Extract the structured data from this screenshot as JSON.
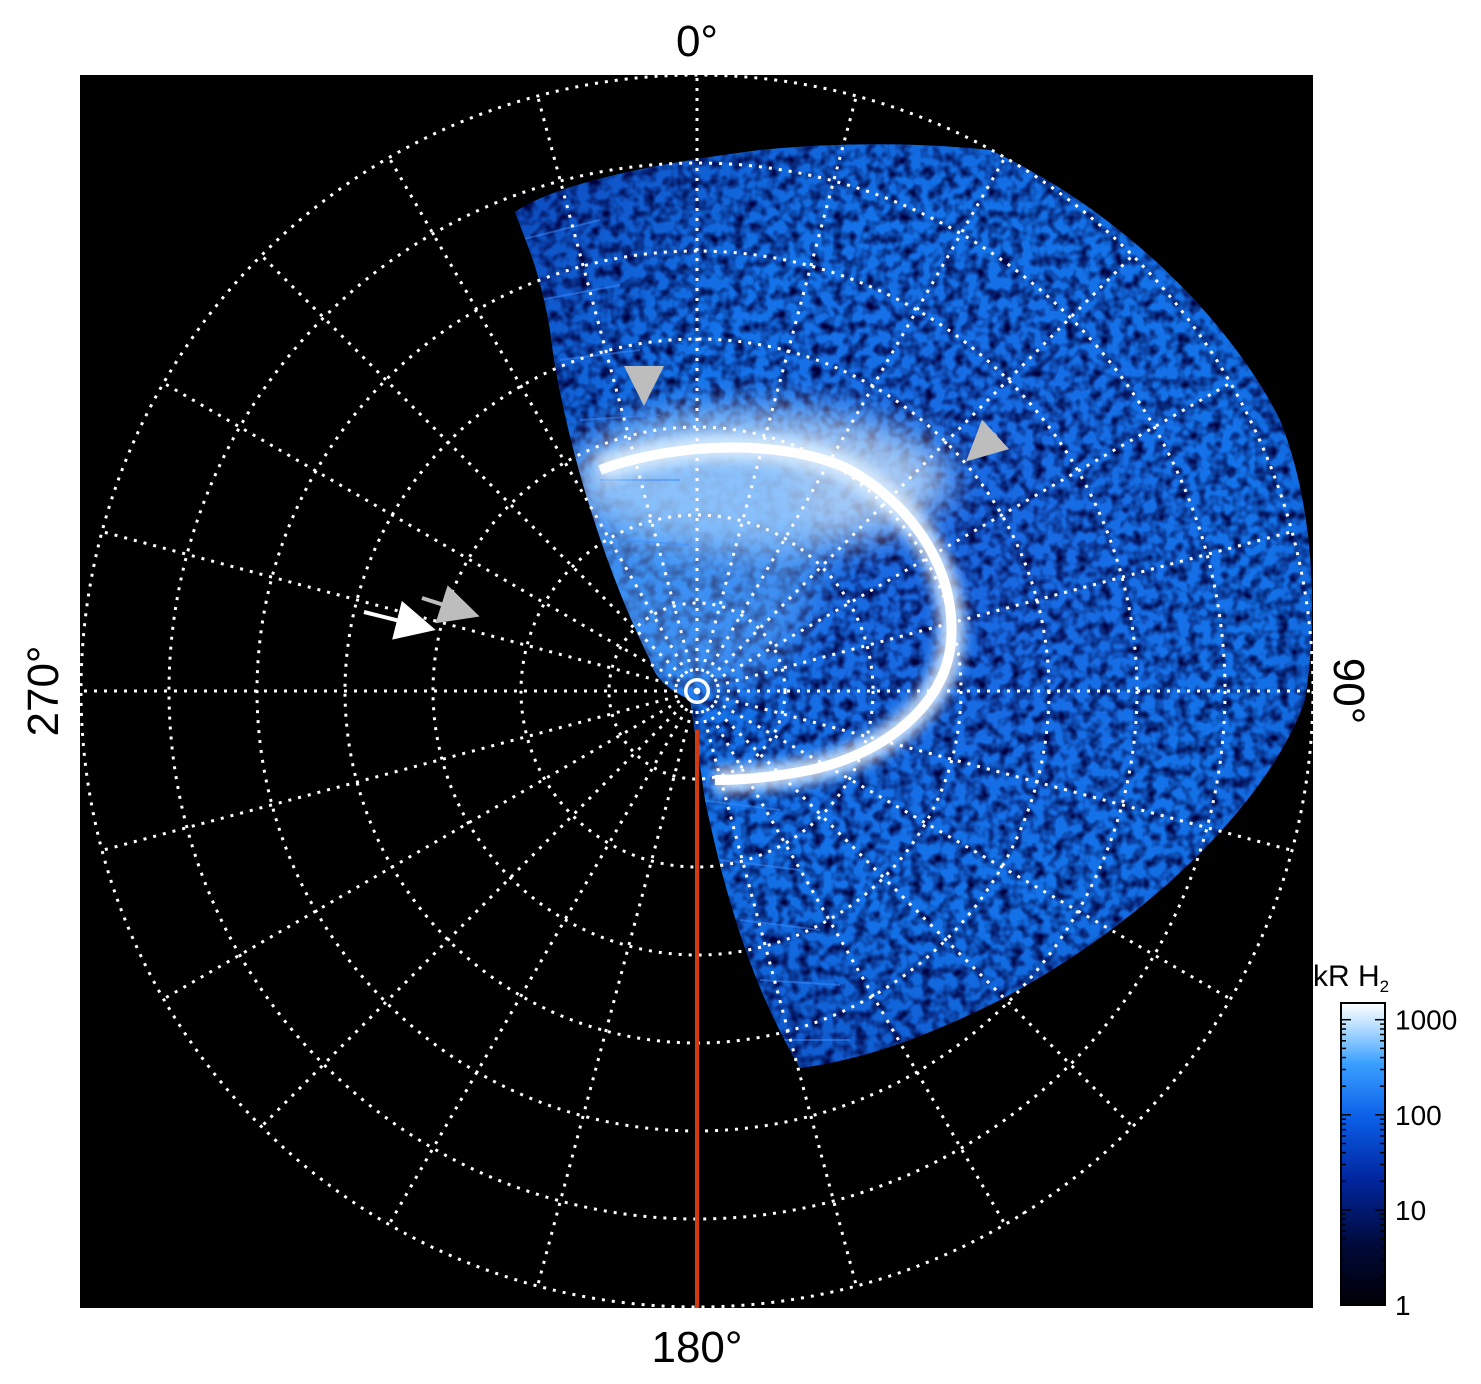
{
  "image": {
    "kind": "polar projection auroral emission map",
    "background_color": "#000000",
    "grid_color": "#ffffff",
    "emission_colors": [
      "#000010",
      "#001f7a",
      "#0a55d6",
      "#1f86ff",
      "#7cc4ff",
      "#ffffff"
    ],
    "meridian_line_color": "#d23a12",
    "arrow_colors": [
      "#ffffff",
      "#bdbdbd"
    ]
  },
  "labels": {
    "top": "0°",
    "bottom": "180°",
    "left": "270°",
    "right": "90°"
  },
  "colorbar": {
    "title": "kR H",
    "title_subscript": "2",
    "scale": "log",
    "ticks": [
      "1000",
      "100",
      "10",
      "1"
    ],
    "range": [
      1,
      1500
    ]
  }
}
